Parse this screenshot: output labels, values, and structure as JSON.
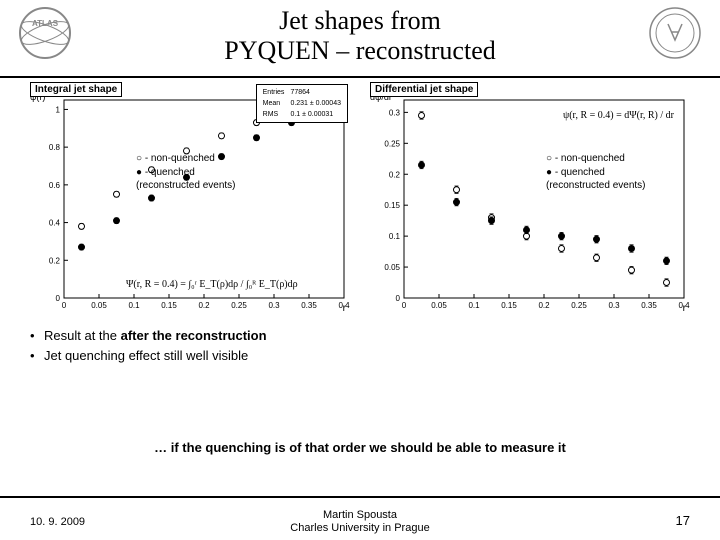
{
  "title_line1": "Jet shapes from",
  "title_line2": "PYQUEN – reconstructed",
  "chart1": {
    "title": "Integral jet shape",
    "ylabel": "ψ(r)",
    "xlabel": "r",
    "xlim": [
      0,
      0.4
    ],
    "ylim": [
      0,
      1.05
    ],
    "xticks": [
      0,
      0.05,
      0.1,
      0.15,
      0.2,
      0.25,
      0.3,
      0.35,
      0.4
    ],
    "yticks": [
      0,
      0.2,
      0.4,
      0.6,
      0.8,
      1
    ],
    "stats": {
      "entries": "77864",
      "mean": "0.231 ± 0.00043",
      "rms": "0.1 ± 0.00031"
    },
    "legend": [
      "○ - non-quenched",
      "● - quenched",
      "(reconstructed events)"
    ],
    "formula": "Ψ(r, R = 0.4) = ∫₀ʳ E_T(ρ)dρ / ∫₀ᴿ E_T(ρ)dρ",
    "open": [
      [
        0.025,
        0.38
      ],
      [
        0.075,
        0.55
      ],
      [
        0.125,
        0.68
      ],
      [
        0.175,
        0.78
      ],
      [
        0.225,
        0.86
      ],
      [
        0.275,
        0.93
      ],
      [
        0.325,
        0.97
      ],
      [
        0.375,
        1.0
      ]
    ],
    "closed": [
      [
        0.025,
        0.27
      ],
      [
        0.075,
        0.41
      ],
      [
        0.125,
        0.53
      ],
      [
        0.175,
        0.64
      ],
      [
        0.225,
        0.75
      ],
      [
        0.275,
        0.85
      ],
      [
        0.325,
        0.93
      ],
      [
        0.375,
        1.0
      ]
    ],
    "err": 0.015,
    "marker_size": 3,
    "grid_color": "#000",
    "bg": "#ffffff"
  },
  "chart2": {
    "title": "Differential jet shape",
    "ylabel": "dψ/dr",
    "xlabel": "r",
    "xlim": [
      0,
      0.4
    ],
    "ylim": [
      0,
      0.32
    ],
    "xticks": [
      0,
      0.05,
      0.1,
      0.15,
      0.2,
      0.25,
      0.3,
      0.35,
      0.4
    ],
    "yticks": [
      0,
      0.05,
      0.1,
      0.15,
      0.2,
      0.25,
      0.3
    ],
    "legend": [
      "○ - non-quenched",
      "● - quenched",
      "(reconstructed events)"
    ],
    "formula": "ψ(r, R = 0.4) = dΨ(r, R) / dr",
    "open": [
      [
        0.025,
        0.295
      ],
      [
        0.075,
        0.175
      ],
      [
        0.125,
        0.13
      ],
      [
        0.175,
        0.1
      ],
      [
        0.225,
        0.08
      ],
      [
        0.275,
        0.065
      ],
      [
        0.325,
        0.045
      ],
      [
        0.375,
        0.025
      ]
    ],
    "closed": [
      [
        0.025,
        0.215
      ],
      [
        0.075,
        0.155
      ],
      [
        0.125,
        0.125
      ],
      [
        0.175,
        0.11
      ],
      [
        0.225,
        0.1
      ],
      [
        0.275,
        0.095
      ],
      [
        0.325,
        0.08
      ],
      [
        0.375,
        0.06
      ]
    ],
    "err": 0.006,
    "marker_size": 3,
    "grid_color": "#000",
    "bg": "#ffffff"
  },
  "bullets": [
    {
      "pre": "Result at the ",
      "bold": "after the reconstruction",
      "post": ""
    },
    {
      "pre": "Jet quenching effect still well visible",
      "bold": "",
      "post": ""
    }
  ],
  "midline": "… if the quenching is of that order we should be able to measure it",
  "footer": {
    "date": "10. 9. 2009",
    "author": "Martin Spousta",
    "affil": "Charles University in Prague",
    "page": "17"
  }
}
